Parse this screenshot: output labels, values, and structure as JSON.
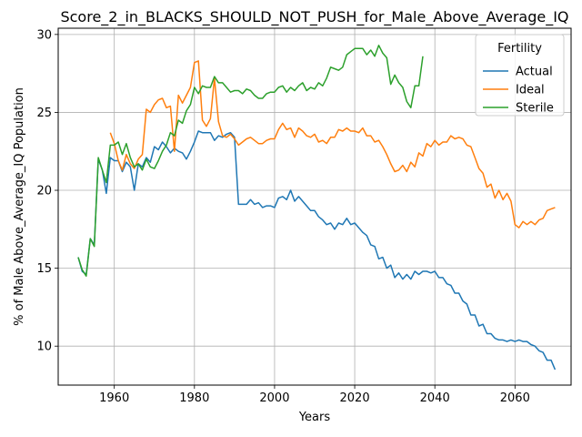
{
  "chart_data": {
    "type": "line",
    "title": "Score_2_in_BLACKS_SHOULD_NOT_PUSH_for_Male_Above_Average_IQ",
    "xlabel": "Years",
    "ylabel": "% of Male Above_Average_IQ Population",
    "xlim": [
      1946,
      2074
    ],
    "ylim": [
      7.5,
      30.4
    ],
    "x_ticks": [
      1960,
      1980,
      2000,
      2020,
      2040,
      2060
    ],
    "y_ticks": [
      10,
      15,
      20,
      25,
      30
    ],
    "grid": true,
    "legend_title": "Fertility",
    "legend_position": "top-right",
    "series": [
      {
        "name": "Actual",
        "color": "#1f77b4",
        "x": [
          1951,
          1952,
          1953,
          1954,
          1955,
          1956,
          1957,
          1958,
          1959,
          1960,
          1961,
          1962,
          1963,
          1964,
          1965,
          1966,
          1967,
          1968,
          1969,
          1970,
          1971,
          1972,
          1973,
          1974,
          1975,
          1976,
          1977,
          1978,
          1979,
          1980,
          1981,
          1982,
          1983,
          1984,
          1985,
          1986,
          1987,
          1988,
          1989,
          1990,
          1991,
          1992,
          1993,
          1994,
          1995,
          1996,
          1997,
          1998,
          1999,
          2000,
          2001,
          2002,
          2003,
          2004,
          2005,
          2006,
          2007,
          2008,
          2009,
          2010,
          2011,
          2012,
          2013,
          2014,
          2015,
          2016,
          2017,
          2018,
          2019,
          2020,
          2021,
          2022,
          2023,
          2024,
          2025,
          2026,
          2027,
          2028,
          2029,
          2030,
          2031,
          2032,
          2033,
          2034,
          2035,
          2036,
          2037,
          2038,
          2039,
          2040,
          2041,
          2042,
          2043,
          2044,
          2045,
          2046,
          2047,
          2048,
          2049,
          2050,
          2051,
          2052,
          2053,
          2054,
          2055,
          2056,
          2057,
          2058,
          2059,
          2060,
          2061,
          2062,
          2063,
          2064,
          2065,
          2066,
          2067,
          2068,
          2069,
          2070
        ],
        "values": [
          15.7,
          14.8,
          14.6,
          16.9,
          16.5,
          22.0,
          21.3,
          19.8,
          22.1,
          21.9,
          21.9,
          21.2,
          21.8,
          21.5,
          20.0,
          21.7,
          21.5,
          22.1,
          21.8,
          22.8,
          22.6,
          23.1,
          22.8,
          22.4,
          22.7,
          22.5,
          22.4,
          22.0,
          22.5,
          23.1,
          23.8,
          23.7,
          23.7,
          23.7,
          23.2,
          23.5,
          23.4,
          23.6,
          23.7,
          23.4,
          19.1,
          19.1,
          19.1,
          19.4,
          19.1,
          19.2,
          18.9,
          19.0,
          19.0,
          18.9,
          19.5,
          19.6,
          19.4,
          20.0,
          19.3,
          19.6,
          19.3,
          19.0,
          18.7,
          18.7,
          18.3,
          18.1,
          17.8,
          17.9,
          17.5,
          17.9,
          17.8,
          18.2,
          17.8,
          17.9,
          17.6,
          17.3,
          17.1,
          16.5,
          16.4,
          15.6,
          15.7,
          15.0,
          15.2,
          14.4,
          14.7,
          14.3,
          14.6,
          14.3,
          14.8,
          14.6,
          14.8,
          14.8,
          14.7,
          14.8,
          14.4,
          14.4,
          14.0,
          13.9,
          13.4,
          13.4,
          12.9,
          12.7,
          12.0,
          12.0,
          11.3,
          11.4,
          10.8,
          10.8,
          10.5,
          10.4,
          10.4,
          10.3,
          10.4,
          10.3,
          10.4,
          10.3,
          10.3,
          10.1,
          10.0,
          9.7,
          9.6,
          9.1,
          9.1,
          8.5
        ]
      },
      {
        "name": "Ideal",
        "color": "#ff7f0e",
        "x": [
          1959,
          1960,
          1961,
          1962,
          1963,
          1964,
          1965,
          1966,
          1967,
          1968,
          1969,
          1970,
          1971,
          1972,
          1973,
          1974,
          1975,
          1976,
          1977,
          1978,
          1979,
          1980,
          1981,
          1982,
          1983,
          1984,
          1985,
          1986,
          1987,
          1988,
          1989,
          1990,
          1991,
          1992,
          1993,
          1994,
          1995,
          1996,
          1997,
          1998,
          1999,
          2000,
          2001,
          2002,
          2003,
          2004,
          2005,
          2006,
          2007,
          2008,
          2009,
          2010,
          2011,
          2012,
          2013,
          2014,
          2015,
          2016,
          2017,
          2018,
          2019,
          2020,
          2021,
          2022,
          2023,
          2024,
          2025,
          2026,
          2027,
          2028,
          2029,
          2030,
          2031,
          2032,
          2033,
          2034,
          2035,
          2036,
          2037,
          2038,
          2039,
          2040,
          2041,
          2042,
          2043,
          2044,
          2045,
          2046,
          2047,
          2048,
          2049,
          2050,
          2051,
          2052,
          2053,
          2054,
          2055,
          2056,
          2057,
          2058,
          2059,
          2060,
          2061,
          2062,
          2063,
          2064,
          2065,
          2066,
          2067,
          2068,
          2069,
          2070
        ],
        "values": [
          23.7,
          23.0,
          21.9,
          21.3,
          22.3,
          21.7,
          21.4,
          22.0,
          22.3,
          25.2,
          25.0,
          25.5,
          25.8,
          25.9,
          25.3,
          25.4,
          22.5,
          26.1,
          25.6,
          26.1,
          26.6,
          28.2,
          28.3,
          24.5,
          24.1,
          24.6,
          27.2,
          24.4,
          23.5,
          23.4,
          23.6,
          23.3,
          22.9,
          23.1,
          23.3,
          23.4,
          23.2,
          23.0,
          23.0,
          23.2,
          23.3,
          23.3,
          23.9,
          24.3,
          23.9,
          24.0,
          23.4,
          24.0,
          23.8,
          23.5,
          23.4,
          23.6,
          23.1,
          23.2,
          23.0,
          23.4,
          23.4,
          23.9,
          23.8,
          24.0,
          23.8,
          23.8,
          23.7,
          24.0,
          23.5,
          23.5,
          23.1,
          23.2,
          22.8,
          22.3,
          21.7,
          21.2,
          21.3,
          21.6,
          21.2,
          21.8,
          21.5,
          22.4,
          22.2,
          23.0,
          22.8,
          23.2,
          22.9,
          23.1,
          23.1,
          23.5,
          23.3,
          23.4,
          23.3,
          22.9,
          22.8,
          22.1,
          21.4,
          21.1,
          20.2,
          20.4,
          19.5,
          20.0,
          19.4,
          19.8,
          19.3,
          17.8,
          17.6,
          18.0,
          17.8,
          18.0,
          17.8,
          18.1,
          18.2,
          18.7,
          18.8,
          18.9
        ]
      },
      {
        "name": "Sterile",
        "color": "#2ca02c",
        "x": [
          1951,
          1952,
          1953,
          1954,
          1955,
          1956,
          1957,
          1958,
          1959,
          1960,
          1961,
          1962,
          1963,
          1964,
          1965,
          1966,
          1967,
          1968,
          1969,
          1970,
          1971,
          1972,
          1973,
          1974,
          1975,
          1976,
          1977,
          1978,
          1979,
          1980,
          1981,
          1982,
          1983,
          1984,
          1985,
          1986,
          1987,
          1988,
          1989,
          1990,
          1991,
          1992,
          1993,
          1994,
          1995,
          1996,
          1997,
          1998,
          1999,
          2000,
          2001,
          2002,
          2003,
          2004,
          2005,
          2006,
          2007,
          2008,
          2009,
          2010,
          2011,
          2012,
          2013,
          2014,
          2015,
          2016,
          2017,
          2018,
          2019,
          2020,
          2021,
          2022,
          2023,
          2024,
          2025,
          2026,
          2027,
          2028,
          2029,
          2030,
          2031,
          2032,
          2033,
          2034,
          2035,
          2036,
          2037
        ],
        "values": [
          15.7,
          14.9,
          14.5,
          16.9,
          16.4,
          22.1,
          21.3,
          20.5,
          22.9,
          22.9,
          23.1,
          22.3,
          23.0,
          22.1,
          21.5,
          21.7,
          21.3,
          22.0,
          21.5,
          21.4,
          21.9,
          22.5,
          22.9,
          23.7,
          23.5,
          24.5,
          24.3,
          25.1,
          25.5,
          26.6,
          26.2,
          26.7,
          26.6,
          26.6,
          27.3,
          26.9,
          26.9,
          26.6,
          26.3,
          26.4,
          26.4,
          26.2,
          26.5,
          26.4,
          26.1,
          25.9,
          25.9,
          26.2,
          26.3,
          26.3,
          26.6,
          26.7,
          26.3,
          26.6,
          26.4,
          26.7,
          26.9,
          26.4,
          26.6,
          26.5,
          26.9,
          26.7,
          27.2,
          27.9,
          27.8,
          27.7,
          27.9,
          28.7,
          28.9,
          29.1,
          29.1,
          29.1,
          28.7,
          29.0,
          28.6,
          29.3,
          28.8,
          28.5,
          26.8,
          27.4,
          26.9,
          26.6,
          25.7,
          25.3,
          26.7,
          26.7,
          28.6
        ]
      }
    ]
  }
}
